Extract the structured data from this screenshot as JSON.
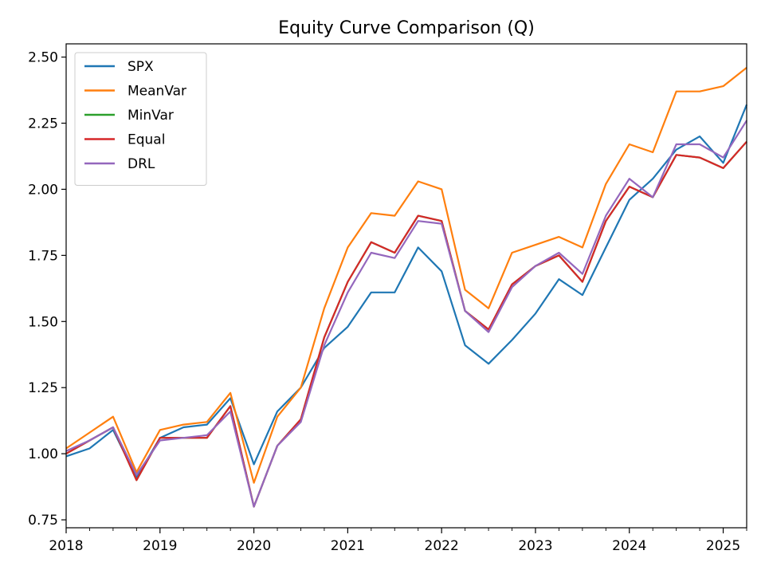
{
  "chart_data": {
    "type": "line",
    "title": "Equity Curve Comparison (Q)",
    "xlabel": "",
    "ylabel": "",
    "x": [
      "2018-01",
      "2018-04",
      "2018-07",
      "2018-10",
      "2019-01",
      "2019-04",
      "2019-07",
      "2019-10",
      "2020-01",
      "2020-04",
      "2020-07",
      "2020-10",
      "2021-01",
      "2021-04",
      "2021-07",
      "2021-10",
      "2022-01",
      "2022-04",
      "2022-07",
      "2022-10",
      "2023-01",
      "2023-04",
      "2023-07",
      "2023-10",
      "2024-01",
      "2024-04",
      "2024-07",
      "2024-10",
      "2025-01",
      "2025-04"
    ],
    "x_tick_labels": [
      "2018",
      "2019",
      "2020",
      "2021",
      "2022",
      "2023",
      "2024",
      "2025"
    ],
    "xlim": [
      "2018-01",
      "2025-04"
    ],
    "y_tick_labels": [
      "0.75",
      "1.00",
      "1.25",
      "1.50",
      "1.75",
      "2.00",
      "2.25",
      "2.50"
    ],
    "ylim": [
      0.72,
      2.55
    ],
    "grid": false,
    "legend_position": "upper-left",
    "series": [
      {
        "name": "SPX",
        "color": "#1f77b4",
        "values": [
          0.99,
          1.02,
          1.09,
          0.91,
          1.06,
          1.1,
          1.11,
          1.21,
          0.96,
          1.16,
          1.25,
          1.4,
          1.48,
          1.61,
          1.61,
          1.78,
          1.69,
          1.41,
          1.34,
          1.43,
          1.53,
          1.66,
          1.6,
          1.78,
          1.96,
          2.04,
          2.15,
          2.2,
          2.1,
          2.32
        ]
      },
      {
        "name": "MeanVar",
        "color": "#ff7f0e",
        "values": [
          1.02,
          1.08,
          1.14,
          0.93,
          1.09,
          1.11,
          1.12,
          1.23,
          0.89,
          1.14,
          1.25,
          1.55,
          1.78,
          1.91,
          1.9,
          2.03,
          2.0,
          1.62,
          1.55,
          1.76,
          1.79,
          1.82,
          1.78,
          2.02,
          2.17,
          2.14,
          2.37,
          2.37,
          2.39,
          2.46
        ]
      },
      {
        "name": "MinVar",
        "color": "#2ca02c",
        "values": [
          1.0,
          1.05,
          1.1,
          0.9,
          1.06,
          1.06,
          1.06,
          1.18,
          0.8,
          1.03,
          1.13,
          1.44,
          1.65,
          1.8,
          1.76,
          1.9,
          1.88,
          1.54,
          1.47,
          1.64,
          1.71,
          1.75,
          1.65,
          1.88,
          2.01,
          1.97,
          2.13,
          2.12,
          2.08,
          2.18
        ]
      },
      {
        "name": "Equal",
        "color": "#d62728",
        "values": [
          1.0,
          1.05,
          1.1,
          0.9,
          1.06,
          1.06,
          1.06,
          1.18,
          0.8,
          1.03,
          1.13,
          1.44,
          1.65,
          1.8,
          1.76,
          1.9,
          1.88,
          1.54,
          1.47,
          1.64,
          1.71,
          1.75,
          1.65,
          1.88,
          2.01,
          1.97,
          2.13,
          2.12,
          2.08,
          2.18
        ]
      },
      {
        "name": "DRL",
        "color": "#9467bd",
        "values": [
          1.01,
          1.05,
          1.1,
          0.92,
          1.05,
          1.06,
          1.07,
          1.16,
          0.8,
          1.03,
          1.12,
          1.41,
          1.61,
          1.76,
          1.74,
          1.88,
          1.87,
          1.54,
          1.46,
          1.63,
          1.71,
          1.76,
          1.68,
          1.9,
          2.04,
          1.97,
          2.17,
          2.17,
          2.12,
          2.26
        ]
      }
    ]
  }
}
